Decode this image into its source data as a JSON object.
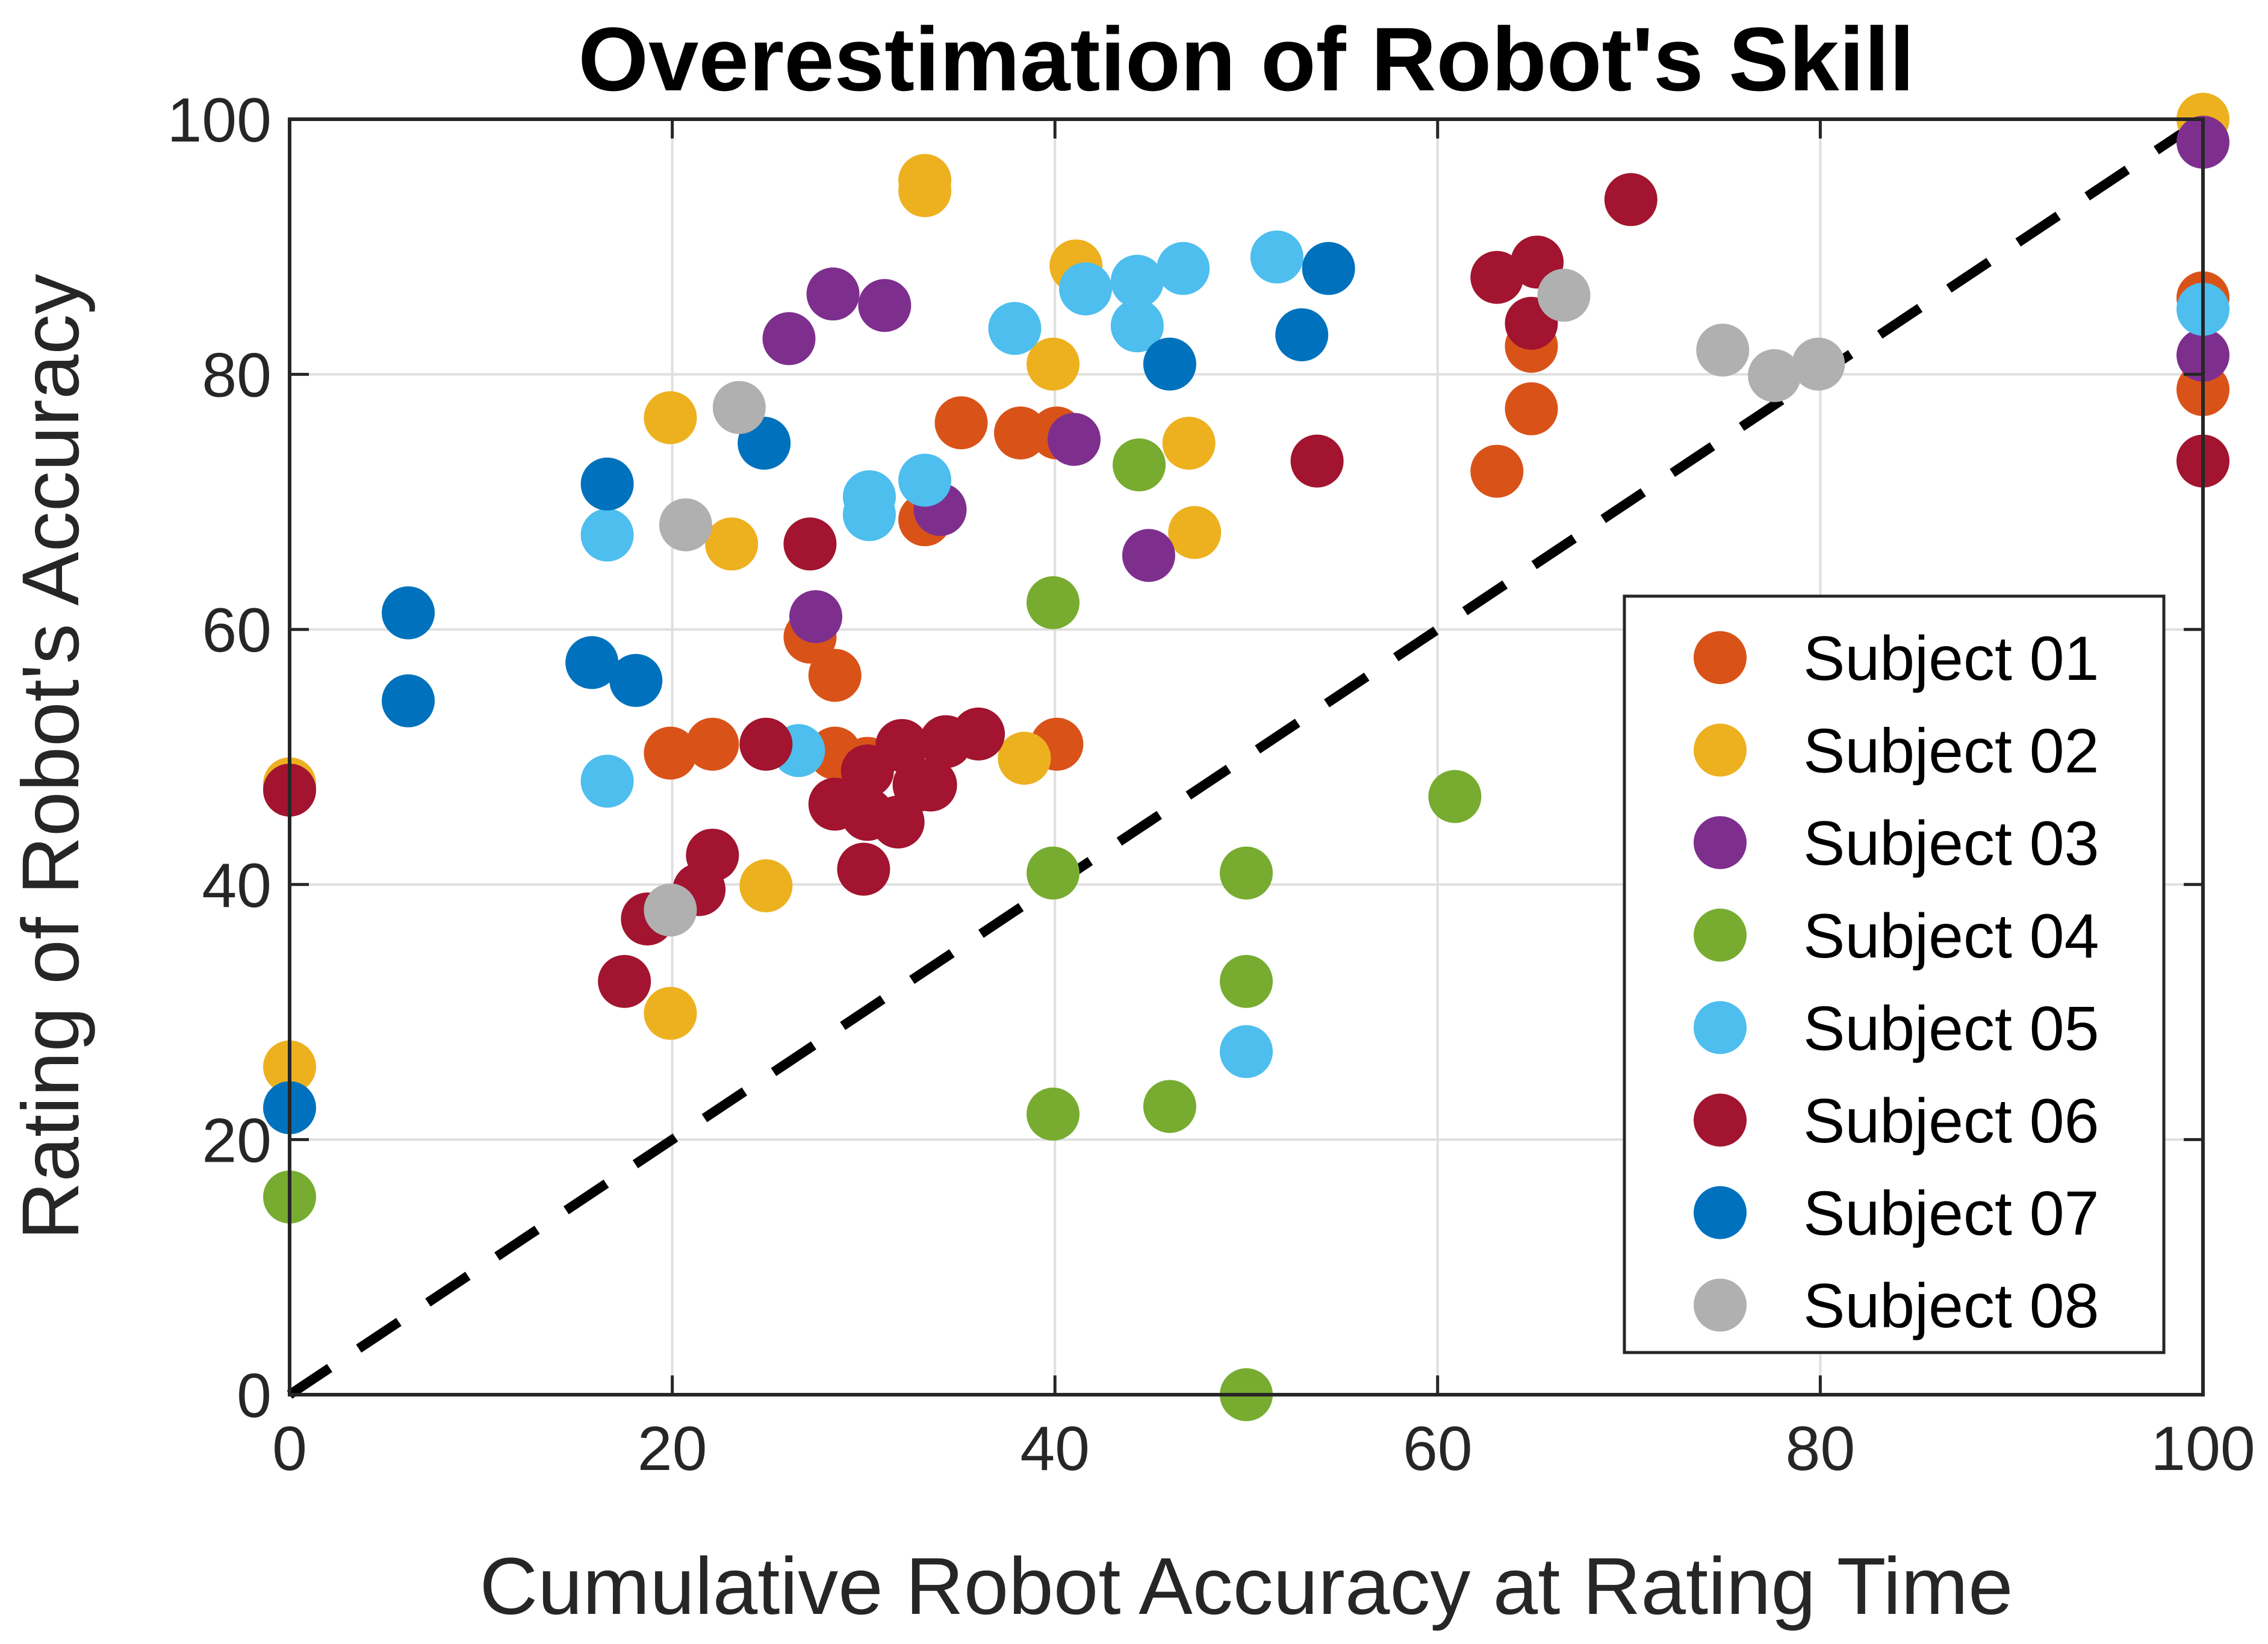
{
  "chart_data": {
    "type": "scatter",
    "title": "Overestimation of Robot's Skill",
    "xlabel": "Cumulative Robot Accuracy at Rating Time",
    "ylabel": "Rating of Robot's Accuracy",
    "xlim": [
      0,
      100
    ],
    "ylim": [
      0,
      100
    ],
    "xticks": [
      0,
      20,
      40,
      60,
      80,
      100
    ],
    "yticks": [
      0,
      20,
      40,
      60,
      80,
      100
    ],
    "grid": true,
    "legend": "bottom-right (inside)",
    "reference_line": {
      "style": "dashed",
      "color": "#000000",
      "from": [
        0,
        0
      ],
      "to": [
        100,
        100
      ]
    },
    "series": [
      {
        "name": "Subject 01",
        "color": "#D95319",
        "points": [
          [
            100,
            86
          ],
          [
            100,
            78.8
          ],
          [
            63.1,
            72.4
          ],
          [
            64.9,
            77.3
          ],
          [
            64.9,
            82.2
          ],
          [
            35.1,
            76.2
          ],
          [
            38.2,
            75.4
          ],
          [
            40.1,
            75.4
          ],
          [
            33.2,
            68.6
          ],
          [
            27.2,
            59.4
          ],
          [
            28.5,
            56.4
          ],
          [
            28.5,
            50.3
          ],
          [
            19.9,
            50.3
          ],
          [
            22.1,
            51
          ],
          [
            40.1,
            51
          ],
          [
            30.2,
            49.5
          ],
          [
            0,
            47.8
          ]
        ]
      },
      {
        "name": "Subject 02",
        "color": "#EDB120",
        "points": [
          [
            100,
            100
          ],
          [
            33.2,
            95.2
          ],
          [
            33.2,
            94.4
          ],
          [
            41.1,
            88.5
          ],
          [
            39.9,
            80.8
          ],
          [
            47,
            74.6
          ],
          [
            47.3,
            67.6
          ],
          [
            19.9,
            76.6
          ],
          [
            23.1,
            66.7
          ],
          [
            38.4,
            49.9
          ],
          [
            24.9,
            39.9
          ],
          [
            19.9,
            29.9
          ],
          [
            0,
            25.7
          ],
          [
            0,
            47.9
          ]
        ]
      },
      {
        "name": "Subject 03",
        "color": "#7E2F8E",
        "points": [
          [
            100,
            98.2
          ],
          [
            100,
            81.5
          ],
          [
            28.4,
            86.3
          ],
          [
            31.1,
            85.4
          ],
          [
            26.1,
            82.8
          ],
          [
            41,
            74.9
          ],
          [
            34,
            69.4
          ],
          [
            27.5,
            61
          ],
          [
            44.9,
            65.8
          ]
        ]
      },
      {
        "name": "Subject 04",
        "color": "#77AC30",
        "points": [
          [
            0,
            15.5
          ],
          [
            39.9,
            62.1
          ],
          [
            44.4,
            72.9
          ],
          [
            39.9,
            40.9
          ],
          [
            39.9,
            22
          ],
          [
            46,
            22.6
          ],
          [
            50,
            40.9
          ],
          [
            50,
            32.4
          ],
          [
            50,
            0
          ],
          [
            60.9,
            46.9
          ]
        ]
      },
      {
        "name": "Subject 05",
        "color": "#4DBEEE",
        "points": [
          [
            100,
            85.1
          ],
          [
            51.6,
            89.2
          ],
          [
            46.7,
            88.3
          ],
          [
            44.3,
            87.3
          ],
          [
            41.6,
            86.7
          ],
          [
            44.3,
            83.8
          ],
          [
            37.9,
            83.6
          ],
          [
            33.2,
            71.7
          ],
          [
            30.3,
            70.4
          ],
          [
            30.3,
            69
          ],
          [
            16.6,
            67.4
          ],
          [
            16.6,
            48.1
          ],
          [
            26.6,
            50.5
          ],
          [
            50,
            26.9
          ]
        ]
      },
      {
        "name": "Subject 06",
        "color": "#A2142F",
        "points": [
          [
            100,
            73.2
          ],
          [
            70.1,
            93.7
          ],
          [
            63.1,
            87.6
          ],
          [
            65.2,
            88.8
          ],
          [
            64.9,
            84
          ],
          [
            53.7,
            73.2
          ],
          [
            27.2,
            66.7
          ],
          [
            24.9,
            51
          ],
          [
            0,
            47.4
          ],
          [
            32,
            50.9
          ],
          [
            34.3,
            51.2
          ],
          [
            36,
            51.8
          ],
          [
            30.2,
            48.9
          ],
          [
            32.9,
            47.8
          ],
          [
            28.5,
            46.3
          ],
          [
            30.2,
            45.5
          ],
          [
            31.8,
            44.9
          ],
          [
            33.5,
            47.8
          ],
          [
            30,
            41.2
          ],
          [
            22.1,
            42.3
          ],
          [
            21.4,
            39.6
          ],
          [
            18.7,
            37.3
          ],
          [
            17.5,
            32.4
          ]
        ]
      },
      {
        "name": "Subject 07",
        "color": "#0072BD",
        "points": [
          [
            0,
            22.5
          ],
          [
            6.2,
            61.3
          ],
          [
            6.2,
            54.4
          ],
          [
            15.8,
            57.4
          ],
          [
            18.1,
            56
          ],
          [
            16.6,
            71.4
          ],
          [
            24.8,
            74.6
          ],
          [
            46,
            80.8
          ],
          [
            52.9,
            83.1
          ],
          [
            54.3,
            88.3
          ]
        ]
      },
      {
        "name": "Subject 08",
        "color": "#B0B0B0",
        "points": [
          [
            66.6,
            86.2
          ],
          [
            74.9,
            81.9
          ],
          [
            77.6,
            79.9
          ],
          [
            79.9,
            80.8
          ],
          [
            23.5,
            77.4
          ],
          [
            20.7,
            68.2
          ],
          [
            19.9,
            38
          ]
        ]
      }
    ]
  }
}
